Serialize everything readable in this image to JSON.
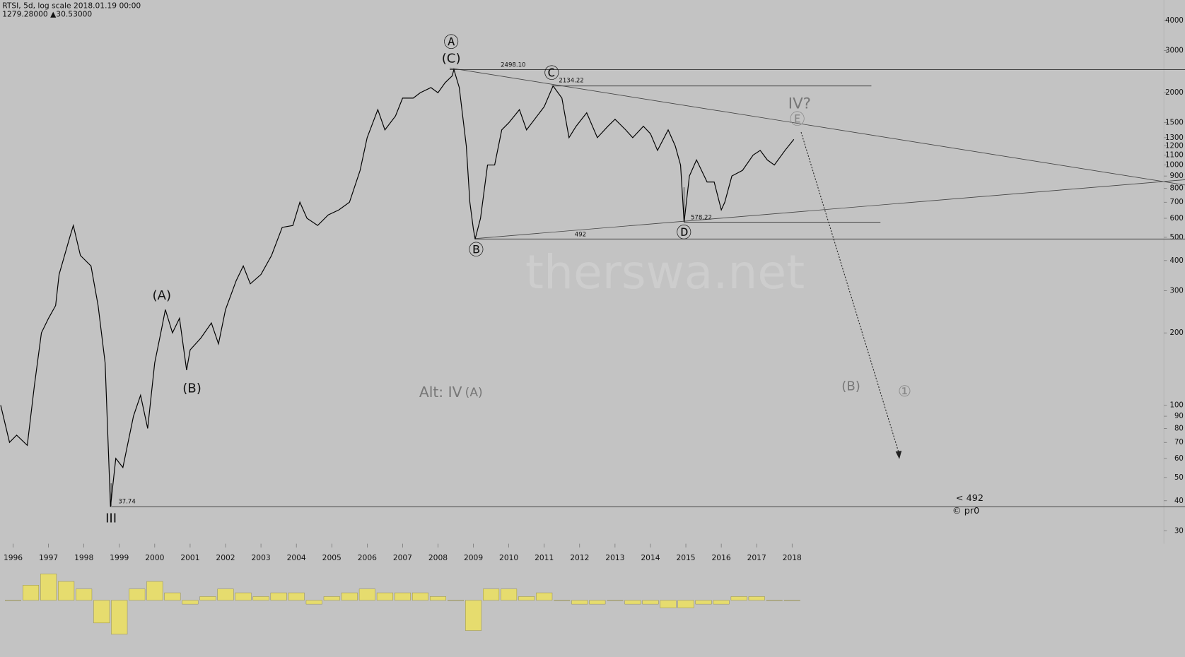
{
  "chart_data": [
    {
      "type": "line",
      "title": "RTSI, 5d, log scale 2018.01.19 00:00",
      "subtitle": "1279.28000 ▲30.53000",
      "log_scale": true,
      "color": "#000000",
      "x": [
        1995.65,
        1995.9,
        1996.1,
        1996.4,
        1996.6,
        1996.8,
        1997.0,
        1997.2,
        1997.3,
        1997.6,
        1997.7,
        1997.9,
        1998.2,
        1998.4,
        1998.6,
        1998.75,
        1998.9,
        1999.1,
        1999.4,
        1999.6,
        1999.8,
        2000.0,
        2000.2,
        2000.3,
        2000.5,
        2000.7,
        2000.9,
        2001.0,
        2001.3,
        2001.6,
        2001.8,
        2002.0,
        2002.3,
        2002.5,
        2002.7,
        2003.0,
        2003.3,
        2003.6,
        2003.9,
        2004.1,
        2004.3,
        2004.6,
        2004.9,
        2005.2,
        2005.5,
        2005.8,
        2006.0,
        2006.3,
        2006.5,
        2006.8,
        2007.0,
        2007.3,
        2007.5,
        2007.8,
        2008.0,
        2008.2,
        2008.4,
        2008.45,
        2008.6,
        2008.8,
        2008.9,
        2009.0,
        2009.05,
        2009.2,
        2009.4,
        2009.6,
        2009.8,
        2010.0,
        2010.3,
        2010.5,
        2010.8,
        2011.0,
        2011.25,
        2011.5,
        2011.7,
        2011.9,
        2012.2,
        2012.5,
        2012.8,
        2013.0,
        2013.3,
        2013.5,
        2013.8,
        2014.0,
        2014.2,
        2014.5,
        2014.7,
        2014.85,
        2014.95,
        2015.1,
        2015.3,
        2015.6,
        2015.8,
        2016.0,
        2016.1,
        2016.3,
        2016.6,
        2016.9,
        2017.1,
        2017.3,
        2017.5,
        2017.8,
        2018.05
      ],
      "values": [
        100,
        70,
        75,
        68,
        120,
        200,
        230,
        260,
        350,
        500,
        560,
        420,
        380,
        260,
        150,
        37.74,
        60,
        55,
        90,
        110,
        80,
        150,
        210,
        250,
        200,
        230,
        140,
        170,
        190,
        220,
        180,
        250,
        330,
        380,
        320,
        350,
        420,
        550,
        560,
        700,
        600,
        560,
        620,
        650,
        700,
        950,
        1300,
        1700,
        1400,
        1600,
        1900,
        1900,
        2000,
        2100,
        2000,
        2200,
        2350,
        2498.1,
        2100,
        1200,
        700,
        540,
        492,
        600,
        1000,
        1000,
        1400,
        1500,
        1700,
        1400,
        1600,
        1750,
        2134.22,
        1900,
        1300,
        1450,
        1650,
        1300,
        1450,
        1550,
        1400,
        1300,
        1450,
        1350,
        1150,
        1400,
        1200,
        1000,
        578.22,
        900,
        1050,
        850,
        850,
        650,
        700,
        900,
        950,
        1100,
        1150,
        1050,
        1000,
        1150,
        1279.28
      ],
      "xlim": [
        1995.63,
        2028.5
      ],
      "ylim": [
        26.5,
        4865
      ],
      "xticks": [
        1996,
        1997,
        1998,
        1999,
        2000,
        2001,
        2002,
        2003,
        2004,
        2005,
        2006,
        2007,
        2008,
        2009,
        2010,
        2011,
        2012,
        2013,
        2014,
        2015,
        2016,
        2017,
        2018
      ],
      "yticks": [
        4000,
        3000,
        2000,
        1500,
        1300,
        1200,
        1100,
        1000,
        900,
        800,
        700,
        600,
        500,
        400,
        300,
        200,
        100,
        90,
        80,
        70,
        60,
        50,
        40,
        30
      ],
      "levels": [
        {
          "value": 2498.1,
          "label": "2498.10"
        },
        {
          "value": 2134.22,
          "label": "2134.22"
        },
        {
          "value": 578.22,
          "label": "578.22"
        },
        {
          "value": 492,
          "label": "492"
        },
        {
          "value": 37.74,
          "label": "37.74"
        }
      ],
      "annotations": [
        "Ⓐ",
        "(C)",
        "Ⓑ",
        "Ⓒ",
        "Ⓓ",
        "Ⓔ",
        "IV?",
        "(A)",
        "(B)",
        "III",
        "Alt: IV",
        "(A)",
        "(B)",
        "①",
        "< 492",
        "© pr0"
      ],
      "watermark": "therswa.net"
    },
    {
      "type": "bar",
      "color": "#e6dc6e",
      "x": [
        1996.0,
        1996.5,
        1997.0,
        1997.5,
        1998.0,
        1998.5,
        1999.0,
        1999.5,
        2000.0,
        2000.5,
        2001.0,
        2001.5,
        2002.0,
        2002.5,
        2003.0,
        2003.5,
        2004.0,
        2004.5,
        2005.0,
        2005.5,
        2006.0,
        2006.5,
        2007.0,
        2007.5,
        2008.0,
        2008.5,
        2009.0,
        2009.5,
        2010.0,
        2010.5,
        2011.0,
        2011.5,
        2012.0,
        2012.5,
        2013.0,
        2013.5,
        2014.0,
        2014.5,
        2015.0,
        2015.5,
        2016.0,
        2016.5,
        2017.0,
        2017.5,
        2018.0
      ],
      "values": [
        0.0,
        0.4,
        0.7,
        0.5,
        0.3,
        -0.6,
        -0.9,
        0.3,
        0.5,
        0.2,
        -0.1,
        0.1,
        0.3,
        0.2,
        0.1,
        0.2,
        0.2,
        -0.1,
        0.1,
        0.2,
        0.3,
        0.2,
        0.2,
        0.2,
        0.1,
        0.0,
        -0.8,
        0.3,
        0.3,
        0.1,
        0.2,
        0.0,
        -0.1,
        -0.1,
        0.0,
        -0.1,
        -0.1,
        -0.2,
        -0.2,
        -0.1,
        -0.1,
        0.1,
        0.1,
        0.0,
        0.0
      ],
      "ylim": [
        -1,
        1
      ]
    }
  ]
}
